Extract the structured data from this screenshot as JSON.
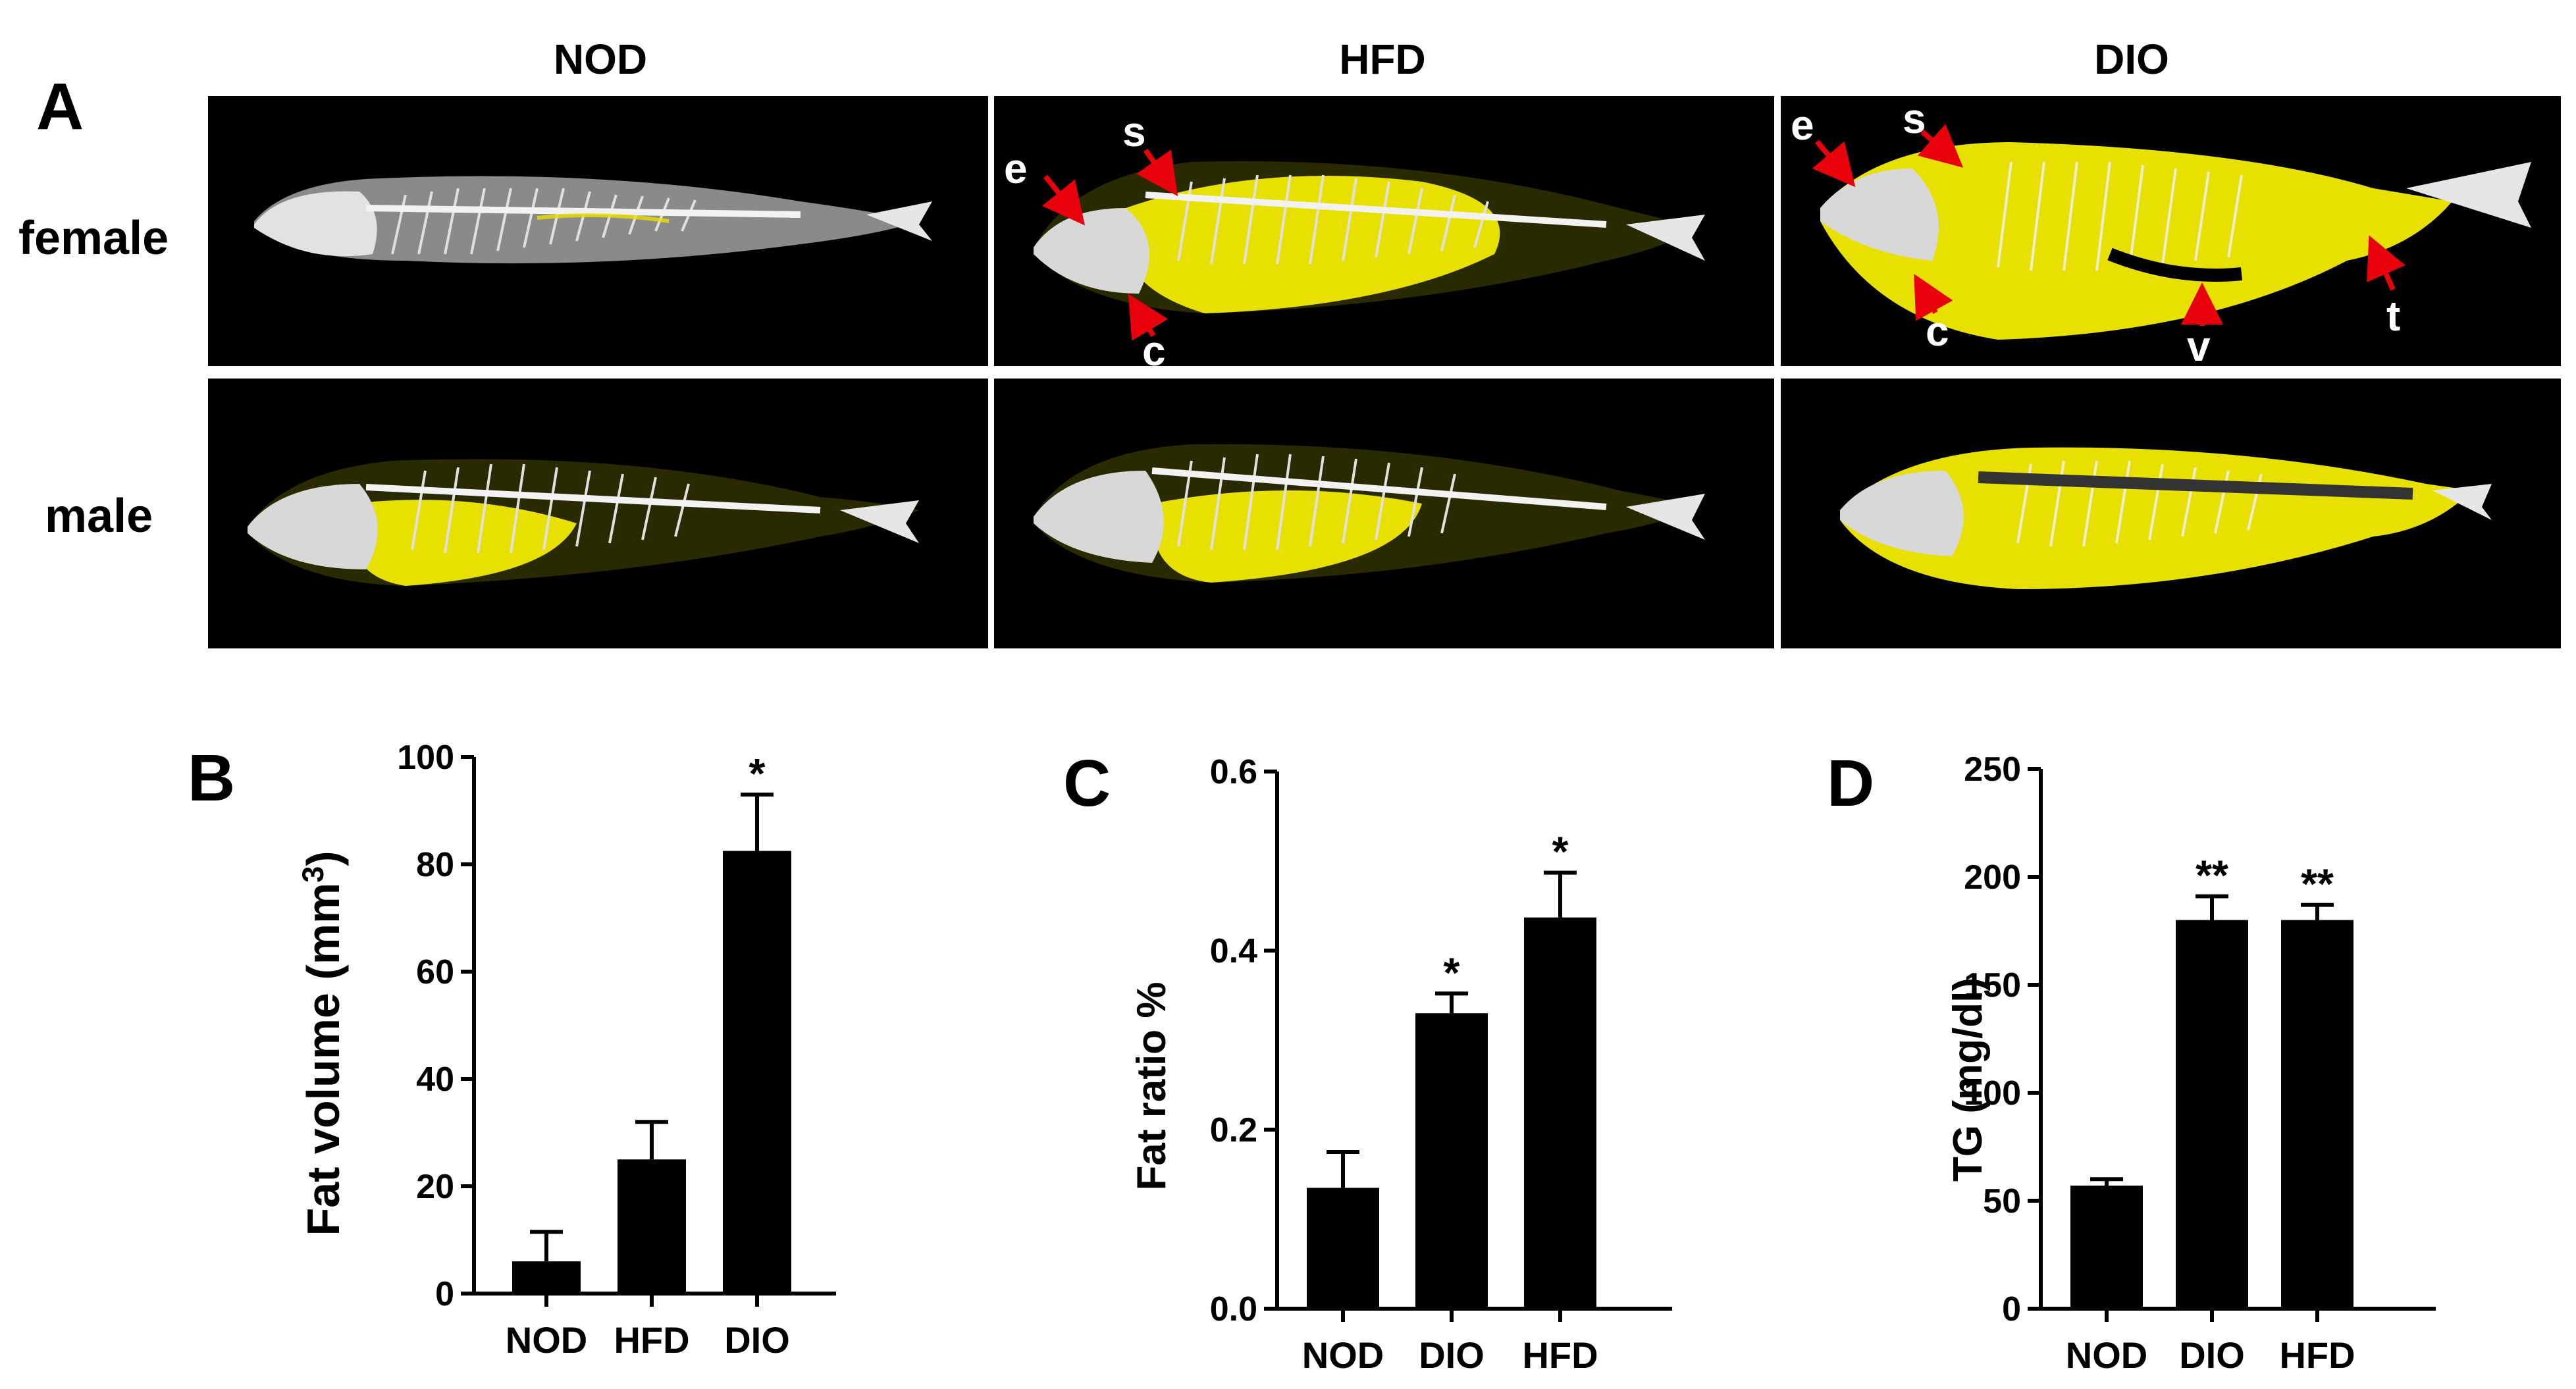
{
  "panel_a": {
    "letter": "A",
    "columns": [
      "NOD",
      "HFD",
      "DIO"
    ],
    "rows": [
      "female",
      "male"
    ],
    "annotations": {
      "hfd_female": [
        "e",
        "s",
        "c"
      ],
      "dio_female": [
        "e",
        "s",
        "c",
        "v",
        "t"
      ]
    },
    "colors": {
      "fat": "#e8e000",
      "bone": "#e6e6e6",
      "background": "#000000",
      "arrow": "#e8000b"
    }
  },
  "chart_data": [
    {
      "panel": "B",
      "type": "bar",
      "categories": [
        "NOD",
        "HFD",
        "DIO"
      ],
      "values": [
        6,
        25,
        82.5
      ],
      "errors": [
        5.5,
        7,
        10.5
      ],
      "significance": [
        "",
        "",
        "*"
      ],
      "ylabel": "Fat volume (mm³)",
      "ylabel_main": "Fat volume (mm",
      "ylabel_sup": "3",
      "ylabel_tail": ")",
      "ylim": [
        0,
        100
      ],
      "yticks": [
        0,
        20,
        40,
        60,
        80,
        100
      ],
      "bar_color": "#000000"
    },
    {
      "panel": "C",
      "type": "bar",
      "categories": [
        "NOD",
        "DIO",
        "HFD"
      ],
      "values": [
        0.135,
        0.33,
        0.437
      ],
      "errors": [
        0.04,
        0.022,
        0.05
      ],
      "significance": [
        "",
        "*",
        "*"
      ],
      "ylabel": "Fat ratio %",
      "ylim": [
        0,
        0.6
      ],
      "yticks": [
        "0.0",
        "0.2",
        "0.4",
        "0.6"
      ],
      "bar_color": "#000000"
    },
    {
      "panel": "D",
      "type": "bar",
      "categories": [
        "NOD",
        "DIO",
        "HFD"
      ],
      "values": [
        57,
        180,
        180
      ],
      "errors": [
        3,
        11,
        7
      ],
      "significance": [
        "",
        "**",
        "**"
      ],
      "ylabel": "TG (mg/dl)",
      "ylim": [
        0,
        250
      ],
      "yticks": [
        0,
        50,
        100,
        150,
        200,
        250
      ],
      "bar_color": "#000000"
    }
  ]
}
